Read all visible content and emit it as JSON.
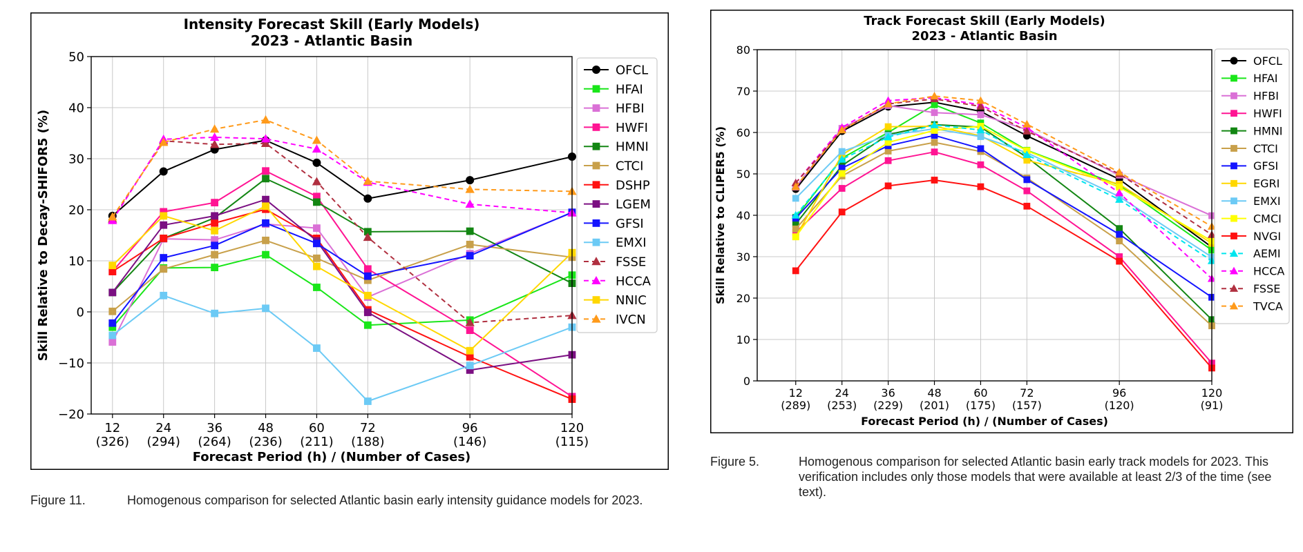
{
  "chart_data": [
    {
      "type": "line",
      "title": [
        "Intensity Forecast Skill (Early Models)",
        "2023 - Atlantic Basin"
      ],
      "xlabel": "Forecast Period (h) / (Number of Cases)",
      "ylabel": "Skill Relative to Decay-SHIFOR5 (%)",
      "ylim": [
        -20,
        50
      ],
      "yticks": [
        -20,
        -10,
        0,
        10,
        20,
        30,
        40,
        50
      ],
      "x": [
        12,
        24,
        36,
        48,
        60,
        72,
        96,
        120
      ],
      "xticklabels": [
        {
          "h": "12",
          "n": "(326)"
        },
        {
          "h": "24",
          "n": "(294)"
        },
        {
          "h": "36",
          "n": "(264)"
        },
        {
          "h": "48",
          "n": "(236)"
        },
        {
          "h": "60",
          "n": "(211)"
        },
        {
          "h": "72",
          "n": "(188)"
        },
        {
          "h": "96",
          "n": "(146)"
        },
        {
          "h": "120",
          "n": "(115)"
        }
      ],
      "grid": true,
      "legend_position": "right",
      "series": [
        {
          "name": "OFCL",
          "color": "#000000",
          "marker": "circle",
          "dashed": false,
          "values": [
            18.8,
            27.5,
            31.8,
            33.6,
            29.2,
            22.2,
            25.8,
            30.4
          ]
        },
        {
          "name": "HFAI",
          "color": "#19e619",
          "marker": "square",
          "dashed": false,
          "values": [
            -3.0,
            8.6,
            8.7,
            11.2,
            4.8,
            -2.6,
            -1.6,
            7.2
          ]
        },
        {
          "name": "HFBI",
          "color": "#da70d6",
          "marker": "square",
          "dashed": false,
          "values": [
            -5.9,
            14.3,
            14.1,
            17.2,
            16.4,
            2.9,
            11.4,
            19.4
          ]
        },
        {
          "name": "HWFI",
          "color": "#ff1493",
          "marker": "square",
          "dashed": false,
          "values": [
            7.9,
            19.6,
            21.4,
            27.6,
            22.6,
            8.4,
            -3.6,
            -16.6
          ]
        },
        {
          "name": "HMNI",
          "color": "#138613",
          "marker": "square",
          "dashed": false,
          "values": [
            3.8,
            14.4,
            18.4,
            26.1,
            21.5,
            15.7,
            15.8,
            5.6
          ]
        },
        {
          "name": "CTCI",
          "color": "#c8a04a",
          "marker": "square",
          "dashed": false,
          "values": [
            0.1,
            8.4,
            11.2,
            14.0,
            10.5,
            6.2,
            13.2,
            10.7
          ]
        },
        {
          "name": "DSHP",
          "color": "#ff1111",
          "marker": "square",
          "dashed": false,
          "values": [
            7.9,
            14.4,
            17.4,
            20.1,
            14.4,
            0.4,
            -8.8,
            -17.1
          ]
        },
        {
          "name": "LGEM",
          "color": "#7b0f82",
          "marker": "square",
          "dashed": false,
          "values": [
            3.8,
            17.0,
            18.8,
            22.0,
            13.9,
            -0.1,
            -11.4,
            -8.4
          ]
        },
        {
          "name": "GFSI",
          "color": "#1414ff",
          "marker": "square",
          "dashed": false,
          "values": [
            -2.2,
            10.6,
            13.0,
            17.4,
            13.4,
            7.0,
            11.0,
            19.5
          ]
        },
        {
          "name": "EMXI",
          "color": "#6ccaf5",
          "marker": "square",
          "dashed": false,
          "values": [
            -4.6,
            3.2,
            -0.3,
            0.7,
            -7.1,
            -17.5,
            -10.5,
            -3.0
          ]
        },
        {
          "name": "FSSE",
          "color": "#b03040",
          "marker": "triangle",
          "dashed": true,
          "values": [
            18.2,
            33.5,
            32.8,
            33.0,
            25.5,
            14.6,
            -2.1,
            -0.7
          ]
        },
        {
          "name": "HCCA",
          "color": "#ff00ff",
          "marker": "triangle",
          "dashed": true,
          "values": [
            17.9,
            33.8,
            34.2,
            33.9,
            31.9,
            25.4,
            21.1,
            19.4
          ]
        },
        {
          "name": "NNIC",
          "color": "#ffd700",
          "marker": "square",
          "dashed": false,
          "values": [
            9.1,
            18.8,
            15.9,
            20.7,
            8.9,
            3.2,
            -7.6,
            11.6
          ]
        },
        {
          "name": "IVCN",
          "color": "#ff9a1a",
          "marker": "triangle",
          "dashed": true,
          "values": [
            18.6,
            33.2,
            35.8,
            37.6,
            33.6,
            25.6,
            24.0,
            23.6
          ]
        }
      ]
    },
    {
      "type": "line",
      "title": [
        "Track Forecast Skill (Early Models)",
        "2023 - Atlantic Basin"
      ],
      "xlabel": "Forecast Period (h) / (Number of Cases)",
      "ylabel": "Skill Relative to CLIPER5 (%)",
      "ylim": [
        0,
        80
      ],
      "yticks": [
        0,
        10,
        20,
        30,
        40,
        50,
        60,
        70,
        80
      ],
      "x": [
        12,
        24,
        36,
        48,
        60,
        72,
        96,
        120
      ],
      "xticklabels": [
        {
          "h": "12",
          "n": "(289)"
        },
        {
          "h": "24",
          "n": "(253)"
        },
        {
          "h": "36",
          "n": "(229)"
        },
        {
          "h": "48",
          "n": "(201)"
        },
        {
          "h": "60",
          "n": "(175)"
        },
        {
          "h": "72",
          "n": "(157)"
        },
        {
          "h": "96",
          "n": "(120)"
        },
        {
          "h": "120",
          "n": "(91)"
        }
      ],
      "grid": true,
      "legend_position": "right",
      "series": [
        {
          "name": "OFCL",
          "color": "#000000",
          "marker": "circle",
          "dashed": false,
          "values": [
            46.3,
            60.3,
            66.2,
            67.3,
            65.1,
            59.2,
            48.7,
            32.3
          ]
        },
        {
          "name": "HFAI",
          "color": "#19e619",
          "marker": "square",
          "dashed": false,
          "values": [
            39.5,
            53.8,
            60.0,
            66.7,
            62.3,
            55.7,
            47.3,
            31.6
          ]
        },
        {
          "name": "HFBI",
          "color": "#da70d6",
          "marker": "square",
          "dashed": false,
          "values": [
            46.8,
            61.0,
            66.5,
            64.8,
            64.3,
            60.7,
            49.7,
            39.9
          ]
        },
        {
          "name": "HWFI",
          "color": "#ff1493",
          "marker": "square",
          "dashed": false,
          "values": [
            35.9,
            46.5,
            53.2,
            55.3,
            52.2,
            45.9,
            30.0,
            4.3
          ]
        },
        {
          "name": "HMNI",
          "color": "#138613",
          "marker": "square",
          "dashed": false,
          "values": [
            37.9,
            52.0,
            59.5,
            61.9,
            61.3,
            54.0,
            36.8,
            14.8
          ]
        },
        {
          "name": "CTCI",
          "color": "#c8a04a",
          "marker": "square",
          "dashed": false,
          "values": [
            36.7,
            49.5,
            55.5,
            57.6,
            55.4,
            49.0,
            33.8,
            13.3
          ]
        },
        {
          "name": "GFSI",
          "color": "#1414ff",
          "marker": "square",
          "dashed": false,
          "values": [
            39.3,
            51.4,
            56.8,
            59.3,
            56.1,
            48.6,
            35.4,
            20.2
          ]
        },
        {
          "name": "EGRI",
          "color": "#ffd700",
          "marker": "square",
          "dashed": false,
          "values": [
            34.8,
            54.6,
            61.4,
            61.5,
            59.2,
            53.3,
            47.5,
            33.2
          ]
        },
        {
          "name": "EMXI",
          "color": "#6ccaf5",
          "marker": "square",
          "dashed": false,
          "values": [
            44.1,
            55.4,
            59.3,
            60.9,
            59.0,
            55.1,
            44.5,
            29.9
          ]
        },
        {
          "name": "CMCI",
          "color": "#ffff00",
          "marker": "square",
          "dashed": false,
          "values": [
            34.8,
            50.1,
            57.6,
            60.5,
            61.5,
            55.6,
            46.8,
            33.8
          ]
        },
        {
          "name": "NVGI",
          "color": "#ff1111",
          "marker": "square",
          "dashed": false,
          "values": [
            26.6,
            40.8,
            47.1,
            48.5,
            46.9,
            42.2,
            28.9,
            3.1
          ]
        },
        {
          "name": "AEMI",
          "color": "#00e5ee",
          "marker": "triangle",
          "dashed": true,
          "values": [
            40.0,
            53.5,
            58.9,
            61.8,
            60.6,
            54.6,
            43.8,
            29.0
          ]
        },
        {
          "name": "HCCA",
          "color": "#ff00ff",
          "marker": "triangle",
          "dashed": true,
          "values": [
            47.8,
            61.2,
            67.7,
            68.4,
            66.7,
            61.2,
            45.4,
            24.7
          ]
        },
        {
          "name": "FSSE",
          "color": "#b03040",
          "marker": "triangle",
          "dashed": true,
          "values": [
            47.8,
            60.6,
            66.9,
            68.1,
            66.3,
            60.3,
            50.0,
            35.3
          ]
        },
        {
          "name": "TVCA",
          "color": "#ff9a1a",
          "marker": "triangle",
          "dashed": true,
          "values": [
            46.9,
            60.6,
            66.9,
            68.8,
            67.7,
            62.0,
            50.4,
            37.3
          ]
        }
      ]
    }
  ],
  "captions": [
    {
      "label": "Figure 11.",
      "text": "Homogenous comparison for selected Atlantic basin early intensity guidance models for 2023."
    },
    {
      "label": "Figure 5.",
      "text": "Homogenous comparison for selected Atlantic basin early track models for 2023. This verification includes only those models that were available at least 2/3 of the time (see text)."
    }
  ]
}
